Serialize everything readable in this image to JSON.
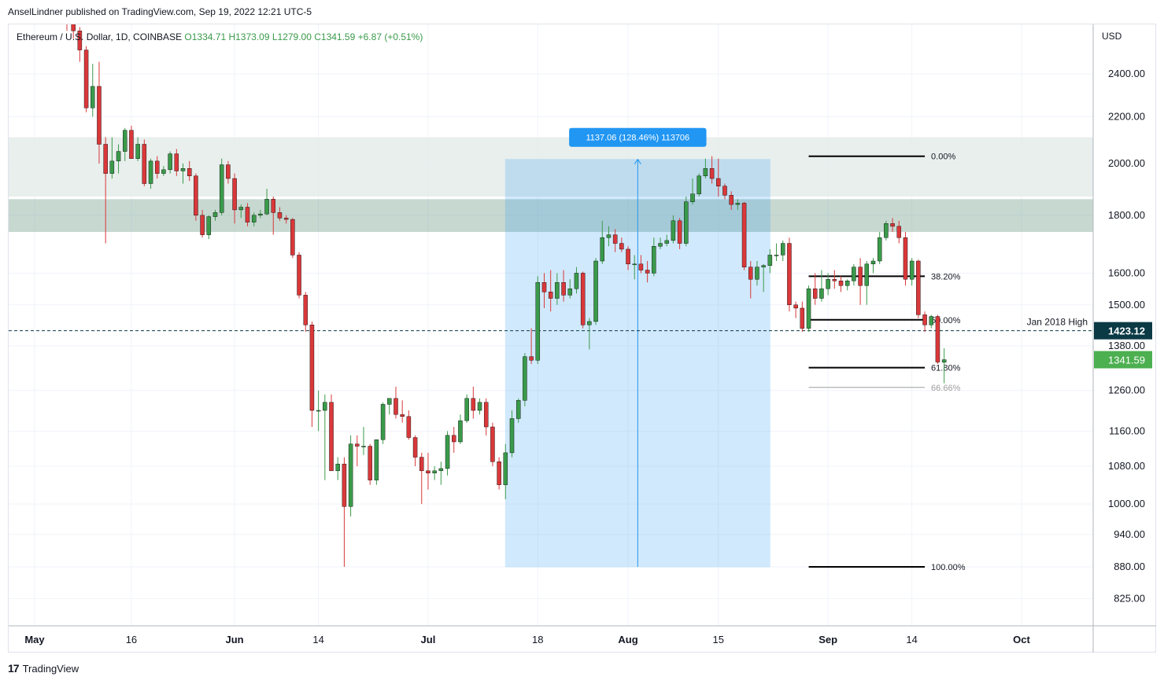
{
  "header": {
    "publisher": "AnselLindner published on TradingView.com, Sep 19, 2022 12:21 UTC-5"
  },
  "footer": {
    "brand": "TradingView"
  },
  "colors": {
    "up": "#26a69a",
    "up_body": "#3a9a4a",
    "down": "#ef5350",
    "down_body": "#d9383a",
    "zone": "#5f8f7a",
    "range": "#2962ff",
    "label_bg": "#2196f3",
    "axis_text": "#131722",
    "last": "#4caf50",
    "level_dark": "#0b3a45"
  },
  "chart_data": {
    "type": "candlestick",
    "symbol_line": {
      "name": "Ethereum / U.S. Dollar, 1D, COINBASE",
      "open": "O1334.71",
      "high": "H1373.09",
      "low": "L1279.00",
      "close": "C1341.59",
      "change": "+6.87 (+0.51%)"
    },
    "currency": "USD",
    "y_scale": "log",
    "y_ticks": [
      "2400.00",
      "2200.00",
      "2000.00",
      "1800.00",
      "1600.00",
      "1500.00",
      "1380.00",
      "1260.00",
      "1160.00",
      "1080.00",
      "1000.00",
      "940.00",
      "880.00",
      "825.00"
    ],
    "x_ticks": [
      "May",
      "16",
      "Jun",
      "14",
      "Jul",
      "18",
      "Aug",
      "15",
      "Sep",
      "14",
      "Oct"
    ],
    "x_tick_dates": [
      "2022-05-01",
      "2022-05-16",
      "2022-06-01",
      "2022-06-14",
      "2022-07-01",
      "2022-07-18",
      "2022-08-01",
      "2022-08-15",
      "2022-09-01",
      "2022-09-14",
      "2022-10-01"
    ],
    "horizontal_level": {
      "label": "Jan 2018 High",
      "value": 1423.12,
      "value_label": "1423.12"
    },
    "last_price": {
      "value": 1341.59,
      "label": "1341.59"
    },
    "resistance_zones": [
      {
        "low": 1740,
        "high": 1860
      },
      {
        "low": 1870,
        "high": 2110
      }
    ],
    "measure": {
      "label": "1137.06 (128.46%) 113706",
      "from_date": "2022-07-13",
      "to_date": "2022-08-23",
      "low": 880,
      "high": 2017
    },
    "fibonacci": {
      "from_date": "2022-08-29",
      "to_date": "2022-09-16",
      "levels": [
        {
          "label": "0.00%",
          "value": 2030
        },
        {
          "label": "38.20%",
          "value": 1590
        },
        {
          "label": "50.00%",
          "value": 1455
        },
        {
          "label": "61.80%",
          "value": 1320
        },
        {
          "label": "66.66%",
          "value": 1268
        },
        {
          "label": "100.00%",
          "value": 880
        }
      ]
    },
    "candles": [
      {
        "d": "2022-05-05",
        "o": 2840,
        "h": 2890,
        "l": 2730,
        "c": 2750
      },
      {
        "d": "2022-05-06",
        "o": 2750,
        "h": 2760,
        "l": 2620,
        "c": 2680
      },
      {
        "d": "2022-05-07",
        "o": 2680,
        "h": 2700,
        "l": 2580,
        "c": 2620
      },
      {
        "d": "2022-05-08",
        "o": 2620,
        "h": 2640,
        "l": 2460,
        "c": 2520
      },
      {
        "d": "2022-05-09",
        "o": 2520,
        "h": 2540,
        "l": 2220,
        "c": 2240
      },
      {
        "d": "2022-05-10",
        "o": 2240,
        "h": 2450,
        "l": 2200,
        "c": 2340
      },
      {
        "d": "2022-05-11",
        "o": 2340,
        "h": 2460,
        "l": 2000,
        "c": 2080
      },
      {
        "d": "2022-05-12",
        "o": 2080,
        "h": 2110,
        "l": 1700,
        "c": 1960
      },
      {
        "d": "2022-05-13",
        "o": 1960,
        "h": 2110,
        "l": 1940,
        "c": 2010
      },
      {
        "d": "2022-05-14",
        "o": 2010,
        "h": 2080,
        "l": 1960,
        "c": 2050
      },
      {
        "d": "2022-05-15",
        "o": 2050,
        "h": 2150,
        "l": 2010,
        "c": 2140
      },
      {
        "d": "2022-05-16",
        "o": 2140,
        "h": 2160,
        "l": 2020,
        "c": 2020
      },
      {
        "d": "2022-05-17",
        "o": 2020,
        "h": 2110,
        "l": 2010,
        "c": 2080
      },
      {
        "d": "2022-05-18",
        "o": 2080,
        "h": 2100,
        "l": 1910,
        "c": 1920
      },
      {
        "d": "2022-05-19",
        "o": 1920,
        "h": 2020,
        "l": 1900,
        "c": 2010
      },
      {
        "d": "2022-05-20",
        "o": 2010,
        "h": 2030,
        "l": 1940,
        "c": 1960
      },
      {
        "d": "2022-05-21",
        "o": 1960,
        "h": 1990,
        "l": 1950,
        "c": 1975
      },
      {
        "d": "2022-05-22",
        "o": 1975,
        "h": 2050,
        "l": 1960,
        "c": 2040
      },
      {
        "d": "2022-05-23",
        "o": 2040,
        "h": 2060,
        "l": 1950,
        "c": 1970
      },
      {
        "d": "2022-05-24",
        "o": 1970,
        "h": 2000,
        "l": 1920,
        "c": 1980
      },
      {
        "d": "2022-05-25",
        "o": 1980,
        "h": 2010,
        "l": 1930,
        "c": 1950
      },
      {
        "d": "2022-05-26",
        "o": 1950,
        "h": 1960,
        "l": 1780,
        "c": 1800
      },
      {
        "d": "2022-05-27",
        "o": 1800,
        "h": 1820,
        "l": 1720,
        "c": 1730
      },
      {
        "d": "2022-05-28",
        "o": 1730,
        "h": 1800,
        "l": 1715,
        "c": 1795
      },
      {
        "d": "2022-05-29",
        "o": 1795,
        "h": 1820,
        "l": 1780,
        "c": 1810
      },
      {
        "d": "2022-05-30",
        "o": 1810,
        "h": 2020,
        "l": 1800,
        "c": 1995
      },
      {
        "d": "2022-05-31",
        "o": 1995,
        "h": 2010,
        "l": 1920,
        "c": 1940
      },
      {
        "d": "2022-06-01",
        "o": 1940,
        "h": 1960,
        "l": 1770,
        "c": 1820
      },
      {
        "d": "2022-06-02",
        "o": 1820,
        "h": 1840,
        "l": 1790,
        "c": 1830
      },
      {
        "d": "2022-06-03",
        "o": 1830,
        "h": 1845,
        "l": 1760,
        "c": 1775
      },
      {
        "d": "2022-06-04",
        "o": 1775,
        "h": 1810,
        "l": 1760,
        "c": 1800
      },
      {
        "d": "2022-06-05",
        "o": 1800,
        "h": 1820,
        "l": 1790,
        "c": 1805
      },
      {
        "d": "2022-06-06",
        "o": 1805,
        "h": 1900,
        "l": 1800,
        "c": 1860
      },
      {
        "d": "2022-06-07",
        "o": 1860,
        "h": 1870,
        "l": 1730,
        "c": 1810
      },
      {
        "d": "2022-06-08",
        "o": 1810,
        "h": 1830,
        "l": 1780,
        "c": 1790
      },
      {
        "d": "2022-06-09",
        "o": 1790,
        "h": 1800,
        "l": 1770,
        "c": 1785
      },
      {
        "d": "2022-06-10",
        "o": 1785,
        "h": 1790,
        "l": 1650,
        "c": 1660
      },
      {
        "d": "2022-06-11",
        "o": 1660,
        "h": 1670,
        "l": 1520,
        "c": 1530
      },
      {
        "d": "2022-06-12",
        "o": 1530,
        "h": 1540,
        "l": 1420,
        "c": 1440
      },
      {
        "d": "2022-06-13",
        "o": 1440,
        "h": 1450,
        "l": 1170,
        "c": 1210
      },
      {
        "d": "2022-06-14",
        "o": 1210,
        "h": 1260,
        "l": 1160,
        "c": 1210
      },
      {
        "d": "2022-06-15",
        "o": 1210,
        "h": 1250,
        "l": 1050,
        "c": 1230
      },
      {
        "d": "2022-06-16",
        "o": 1230,
        "h": 1250,
        "l": 1070,
        "c": 1070
      },
      {
        "d": "2022-06-17",
        "o": 1070,
        "h": 1100,
        "l": 1050,
        "c": 1085
      },
      {
        "d": "2022-06-18",
        "o": 1085,
        "h": 1100,
        "l": 880,
        "c": 995
      },
      {
        "d": "2022-06-19",
        "o": 995,
        "h": 1150,
        "l": 975,
        "c": 1130
      },
      {
        "d": "2022-06-20",
        "o": 1130,
        "h": 1150,
        "l": 1080,
        "c": 1125
      },
      {
        "d": "2022-06-21",
        "o": 1125,
        "h": 1170,
        "l": 1105,
        "c": 1125
      },
      {
        "d": "2022-06-22",
        "o": 1125,
        "h": 1130,
        "l": 1040,
        "c": 1050
      },
      {
        "d": "2022-06-23",
        "o": 1050,
        "h": 1140,
        "l": 1040,
        "c": 1140
      },
      {
        "d": "2022-06-24",
        "o": 1140,
        "h": 1230,
        "l": 1130,
        "c": 1225
      },
      {
        "d": "2022-06-25",
        "o": 1225,
        "h": 1240,
        "l": 1200,
        "c": 1240
      },
      {
        "d": "2022-06-26",
        "o": 1240,
        "h": 1270,
        "l": 1190,
        "c": 1200
      },
      {
        "d": "2022-06-27",
        "o": 1200,
        "h": 1235,
        "l": 1180,
        "c": 1195
      },
      {
        "d": "2022-06-28",
        "o": 1195,
        "h": 1210,
        "l": 1140,
        "c": 1145
      },
      {
        "d": "2022-06-29",
        "o": 1145,
        "h": 1150,
        "l": 1080,
        "c": 1100
      },
      {
        "d": "2022-06-30",
        "o": 1100,
        "h": 1110,
        "l": 1000,
        "c": 1070
      },
      {
        "d": "2022-07-01",
        "o": 1070,
        "h": 1110,
        "l": 1030,
        "c": 1065
      },
      {
        "d": "2022-07-02",
        "o": 1065,
        "h": 1080,
        "l": 1050,
        "c": 1070
      },
      {
        "d": "2022-07-03",
        "o": 1070,
        "h": 1090,
        "l": 1040,
        "c": 1075
      },
      {
        "d": "2022-07-04",
        "o": 1075,
        "h": 1160,
        "l": 1060,
        "c": 1150
      },
      {
        "d": "2022-07-05",
        "o": 1150,
        "h": 1170,
        "l": 1110,
        "c": 1135
      },
      {
        "d": "2022-07-06",
        "o": 1135,
        "h": 1200,
        "l": 1130,
        "c": 1185
      },
      {
        "d": "2022-07-07",
        "o": 1185,
        "h": 1250,
        "l": 1180,
        "c": 1240
      },
      {
        "d": "2022-07-08",
        "o": 1240,
        "h": 1270,
        "l": 1190,
        "c": 1210
      },
      {
        "d": "2022-07-09",
        "o": 1210,
        "h": 1240,
        "l": 1200,
        "c": 1230
      },
      {
        "d": "2022-07-10",
        "o": 1230,
        "h": 1240,
        "l": 1150,
        "c": 1170
      },
      {
        "d": "2022-07-11",
        "o": 1170,
        "h": 1180,
        "l": 1080,
        "c": 1090
      },
      {
        "d": "2022-07-12",
        "o": 1090,
        "h": 1100,
        "l": 1030,
        "c": 1040
      },
      {
        "d": "2022-07-13",
        "o": 1040,
        "h": 1130,
        "l": 1010,
        "c": 1110
      },
      {
        "d": "2022-07-14",
        "o": 1110,
        "h": 1210,
        "l": 1100,
        "c": 1190
      },
      {
        "d": "2022-07-15",
        "o": 1190,
        "h": 1240,
        "l": 1180,
        "c": 1235
      },
      {
        "d": "2022-07-16",
        "o": 1235,
        "h": 1360,
        "l": 1220,
        "c": 1350
      },
      {
        "d": "2022-07-17",
        "o": 1350,
        "h": 1430,
        "l": 1330,
        "c": 1340
      },
      {
        "d": "2022-07-18",
        "o": 1340,
        "h": 1590,
        "l": 1330,
        "c": 1570
      },
      {
        "d": "2022-07-19",
        "o": 1570,
        "h": 1600,
        "l": 1490,
        "c": 1540
      },
      {
        "d": "2022-07-20",
        "o": 1540,
        "h": 1610,
        "l": 1480,
        "c": 1520
      },
      {
        "d": "2022-07-21",
        "o": 1520,
        "h": 1600,
        "l": 1500,
        "c": 1570
      },
      {
        "d": "2022-07-22",
        "o": 1570,
        "h": 1610,
        "l": 1510,
        "c": 1530
      },
      {
        "d": "2022-07-23",
        "o": 1530,
        "h": 1580,
        "l": 1520,
        "c": 1550
      },
      {
        "d": "2022-07-24",
        "o": 1550,
        "h": 1620,
        "l": 1535,
        "c": 1600
      },
      {
        "d": "2022-07-25",
        "o": 1600,
        "h": 1605,
        "l": 1430,
        "c": 1440
      },
      {
        "d": "2022-07-26",
        "o": 1440,
        "h": 1460,
        "l": 1370,
        "c": 1450
      },
      {
        "d": "2022-07-27",
        "o": 1450,
        "h": 1650,
        "l": 1440,
        "c": 1640
      },
      {
        "d": "2022-07-28",
        "o": 1640,
        "h": 1780,
        "l": 1630,
        "c": 1720
      },
      {
        "d": "2022-07-29",
        "o": 1720,
        "h": 1760,
        "l": 1690,
        "c": 1730
      },
      {
        "d": "2022-07-30",
        "o": 1730,
        "h": 1750,
        "l": 1670,
        "c": 1700
      },
      {
        "d": "2022-07-31",
        "o": 1700,
        "h": 1720,
        "l": 1670,
        "c": 1680
      },
      {
        "d": "2022-08-01",
        "o": 1680,
        "h": 1690,
        "l": 1610,
        "c": 1630
      },
      {
        "d": "2022-08-02",
        "o": 1630,
        "h": 1660,
        "l": 1580,
        "c": 1630
      },
      {
        "d": "2022-08-03",
        "o": 1630,
        "h": 1660,
        "l": 1600,
        "c": 1610
      },
      {
        "d": "2022-08-04",
        "o": 1610,
        "h": 1640,
        "l": 1570,
        "c": 1600
      },
      {
        "d": "2022-08-05",
        "o": 1600,
        "h": 1720,
        "l": 1590,
        "c": 1690
      },
      {
        "d": "2022-08-06",
        "o": 1690,
        "h": 1720,
        "l": 1680,
        "c": 1700
      },
      {
        "d": "2022-08-07",
        "o": 1700,
        "h": 1730,
        "l": 1690,
        "c": 1710
      },
      {
        "d": "2022-08-08",
        "o": 1710,
        "h": 1800,
        "l": 1700,
        "c": 1780
      },
      {
        "d": "2022-08-09",
        "o": 1780,
        "h": 1790,
        "l": 1680,
        "c": 1700
      },
      {
        "d": "2022-08-10",
        "o": 1700,
        "h": 1870,
        "l": 1690,
        "c": 1850
      },
      {
        "d": "2022-08-11",
        "o": 1850,
        "h": 1940,
        "l": 1840,
        "c": 1880
      },
      {
        "d": "2022-08-12",
        "o": 1880,
        "h": 1960,
        "l": 1870,
        "c": 1950
      },
      {
        "d": "2022-08-13",
        "o": 1950,
        "h": 2020,
        "l": 1940,
        "c": 1980
      },
      {
        "d": "2022-08-14",
        "o": 1980,
        "h": 2030,
        "l": 1920,
        "c": 1940
      },
      {
        "d": "2022-08-15",
        "o": 1940,
        "h": 2020,
        "l": 1870,
        "c": 1910
      },
      {
        "d": "2022-08-16",
        "o": 1910,
        "h": 1920,
        "l": 1860,
        "c": 1875
      },
      {
        "d": "2022-08-17",
        "o": 1875,
        "h": 1890,
        "l": 1820,
        "c": 1840
      },
      {
        "d": "2022-08-18",
        "o": 1840,
        "h": 1860,
        "l": 1820,
        "c": 1845
      },
      {
        "d": "2022-08-19",
        "o": 1845,
        "h": 1850,
        "l": 1610,
        "c": 1620
      },
      {
        "d": "2022-08-20",
        "o": 1620,
        "h": 1640,
        "l": 1520,
        "c": 1580
      },
      {
        "d": "2022-08-21",
        "o": 1580,
        "h": 1640,
        "l": 1560,
        "c": 1620
      },
      {
        "d": "2022-08-22",
        "o": 1620,
        "h": 1630,
        "l": 1540,
        "c": 1625
      },
      {
        "d": "2022-08-23",
        "o": 1625,
        "h": 1680,
        "l": 1600,
        "c": 1660
      },
      {
        "d": "2022-08-24",
        "o": 1660,
        "h": 1700,
        "l": 1640,
        "c": 1660
      },
      {
        "d": "2022-08-25",
        "o": 1660,
        "h": 1710,
        "l": 1640,
        "c": 1700
      },
      {
        "d": "2022-08-26",
        "o": 1700,
        "h": 1720,
        "l": 1480,
        "c": 1500
      },
      {
        "d": "2022-08-27",
        "o": 1500,
        "h": 1510,
        "l": 1460,
        "c": 1490
      },
      {
        "d": "2022-08-28",
        "o": 1490,
        "h": 1510,
        "l": 1420,
        "c": 1430
      },
      {
        "d": "2022-08-29",
        "o": 1430,
        "h": 1560,
        "l": 1420,
        "c": 1550
      },
      {
        "d": "2022-08-30",
        "o": 1550,
        "h": 1600,
        "l": 1500,
        "c": 1520
      },
      {
        "d": "2022-08-31",
        "o": 1520,
        "h": 1610,
        "l": 1510,
        "c": 1550
      },
      {
        "d": "2022-09-01",
        "o": 1550,
        "h": 1600,
        "l": 1530,
        "c": 1580
      },
      {
        "d": "2022-09-02",
        "o": 1580,
        "h": 1610,
        "l": 1550,
        "c": 1575
      },
      {
        "d": "2022-09-03",
        "o": 1575,
        "h": 1590,
        "l": 1540,
        "c": 1560
      },
      {
        "d": "2022-09-04",
        "o": 1560,
        "h": 1580,
        "l": 1545,
        "c": 1575
      },
      {
        "d": "2022-09-05",
        "o": 1575,
        "h": 1630,
        "l": 1560,
        "c": 1620
      },
      {
        "d": "2022-09-06",
        "o": 1620,
        "h": 1650,
        "l": 1500,
        "c": 1560
      },
      {
        "d": "2022-09-07",
        "o": 1560,
        "h": 1640,
        "l": 1500,
        "c": 1630
      },
      {
        "d": "2022-09-08",
        "o": 1630,
        "h": 1650,
        "l": 1600,
        "c": 1640
      },
      {
        "d": "2022-09-09",
        "o": 1640,
        "h": 1740,
        "l": 1630,
        "c": 1720
      },
      {
        "d": "2022-09-10",
        "o": 1720,
        "h": 1780,
        "l": 1710,
        "c": 1770
      },
      {
        "d": "2022-09-11",
        "o": 1770,
        "h": 1790,
        "l": 1740,
        "c": 1760
      },
      {
        "d": "2022-09-12",
        "o": 1760,
        "h": 1780,
        "l": 1700,
        "c": 1720
      },
      {
        "d": "2022-09-13",
        "o": 1720,
        "h": 1740,
        "l": 1560,
        "c": 1580
      },
      {
        "d": "2022-09-14",
        "o": 1580,
        "h": 1650,
        "l": 1560,
        "c": 1640
      },
      {
        "d": "2022-09-15",
        "o": 1640,
        "h": 1645,
        "l": 1460,
        "c": 1470
      },
      {
        "d": "2022-09-16",
        "o": 1470,
        "h": 1480,
        "l": 1420,
        "c": 1440
      },
      {
        "d": "2022-09-17",
        "o": 1440,
        "h": 1470,
        "l": 1430,
        "c": 1465
      },
      {
        "d": "2022-09-18",
        "o": 1465,
        "h": 1470,
        "l": 1330,
        "c": 1335
      },
      {
        "d": "2022-09-19",
        "o": 1334.71,
        "h": 1373.09,
        "l": 1279.0,
        "c": 1341.59
      }
    ]
  }
}
